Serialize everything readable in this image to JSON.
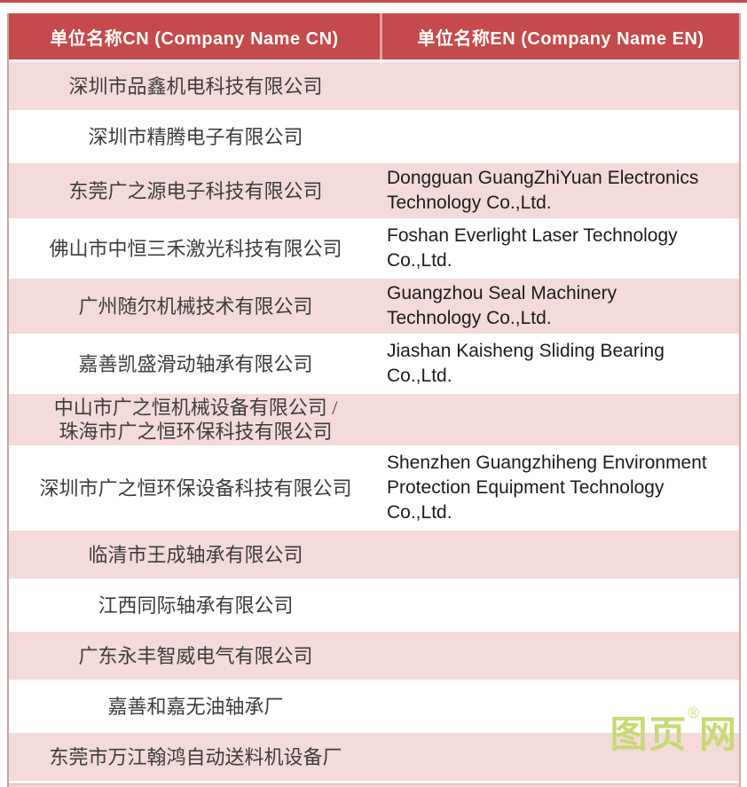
{
  "table": {
    "headers": [
      {
        "label": "单位名称CN (Company Name CN)"
      },
      {
        "label": "单位名称EN (Company Name EN)"
      }
    ],
    "rows": [
      {
        "cn": "深圳市品鑫机电科技有限公司",
        "en": ""
      },
      {
        "cn": "深圳市精腾电子有限公司",
        "en": ""
      },
      {
        "cn": "东莞广之源电子科技有限公司",
        "en": "Dongguan GuangZhiYuan Electronics\nTechnology Co.,Ltd."
      },
      {
        "cn": "佛山市中恒三禾激光科技有限公司",
        "en": "Foshan Everlight Laser Technology\nCo.,Ltd."
      },
      {
        "cn": "广州随尔机械技术有限公司",
        "en": "Guangzhou Seal Machinery\nTechnology Co.,Ltd."
      },
      {
        "cn": "嘉善凯盛滑动轴承有限公司",
        "en": "Jiashan Kaisheng Sliding Bearing\nCo.,Ltd."
      },
      {
        "cn": "中山市广之恒机械设备有限公司 /\n珠海市广之恒环保科技有限公司",
        "en": ""
      },
      {
        "cn": "深圳市广之恒环保设备科技有限公司",
        "en": "Shenzhen Guangzhiheng Environment\nProtection Equipment Technology\nCo.,Ltd."
      },
      {
        "cn": "临清市王成轴承有限公司",
        "en": ""
      },
      {
        "cn": "江西同际轴承有限公司",
        "en": ""
      },
      {
        "cn": "广东永丰智威电气有限公司",
        "en": ""
      },
      {
        "cn": "嘉善和嘉无油轴承厂",
        "en": ""
      },
      {
        "cn": "东莞市万江翰鸿自动送料机设备厂",
        "en": ""
      }
    ]
  },
  "watermark": {
    "text_before": "图页",
    "reg_mark": "®",
    "text_after": "网",
    "color": "#c8da74"
  },
  "colors": {
    "header_bg": "#c54a4c",
    "header_text": "#ffffff",
    "row_pink": "#f5dada",
    "row_white": "#ffffff",
    "cn_text": "#3d3d3d",
    "en_text": "#1c1c1c",
    "header_divider": "#e2a0a0",
    "top_strip": "#c4494b"
  }
}
